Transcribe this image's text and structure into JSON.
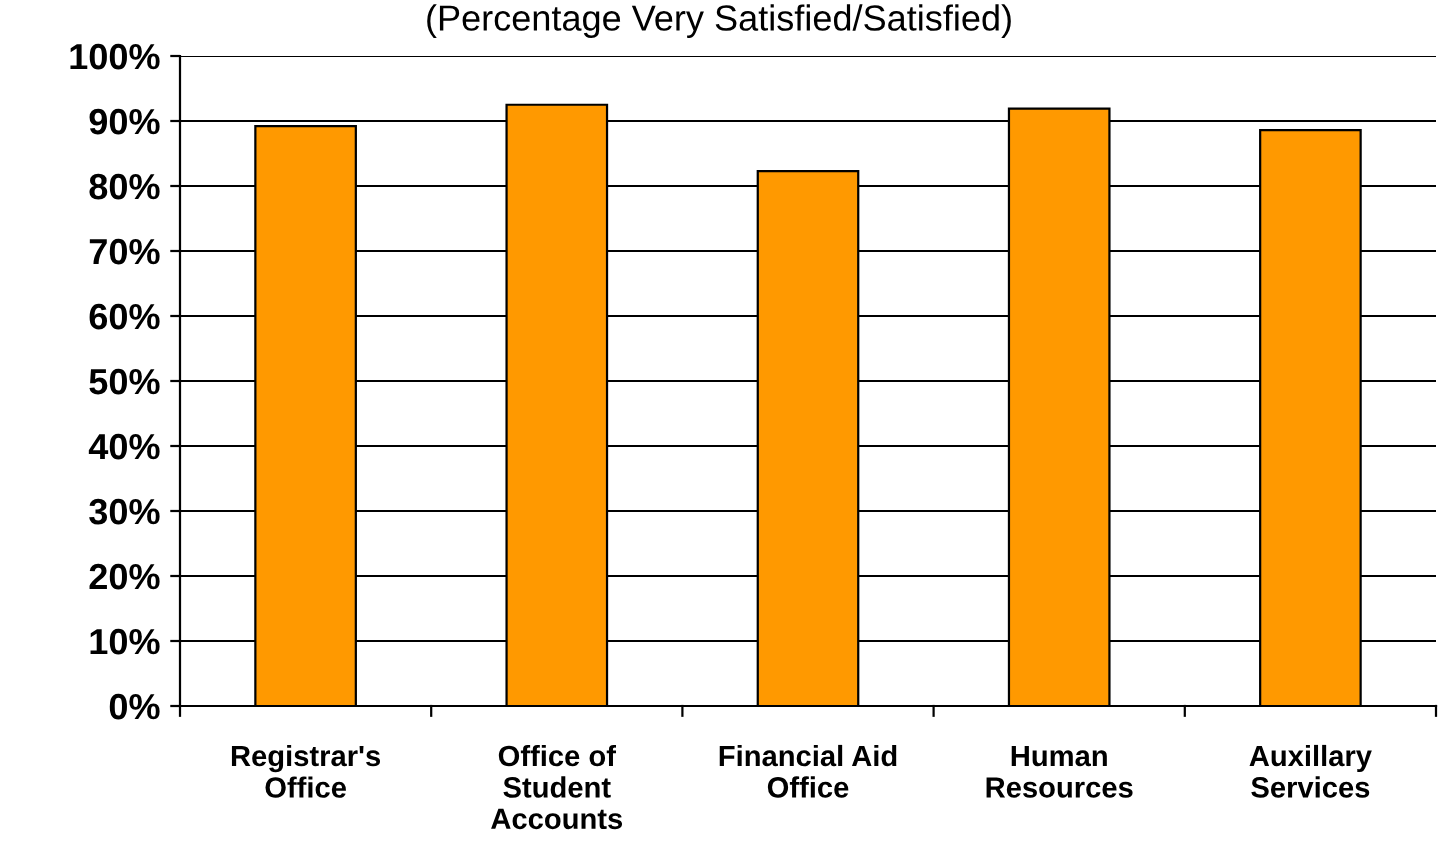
{
  "chart_data": {
    "type": "bar",
    "subtitle": "(Percentage Very Satisfied/Satisfied)",
    "categories": [
      "Registrar's\nOffice",
      "Office of\nStudent\nAccounts",
      "Financial Aid\nOffice",
      "Human\nResources",
      "Auxillary\nServices"
    ],
    "values": [
      89.2,
      92.5,
      82.3,
      91.9,
      88.6
    ],
    "color": "#ff9900",
    "ylim": [
      0,
      100
    ],
    "yticks": [
      {
        "value": 0,
        "label": "0%"
      },
      {
        "value": 10,
        "label": "10%"
      },
      {
        "value": 20,
        "label": "20%"
      },
      {
        "value": 30,
        "label": "30%"
      },
      {
        "value": 40,
        "label": "40%"
      },
      {
        "value": 50,
        "label": "50%"
      },
      {
        "value": 60,
        "label": "60%"
      },
      {
        "value": 70,
        "label": "70%"
      },
      {
        "value": 80,
        "label": "80%"
      },
      {
        "value": 90,
        "label": "90%"
      },
      {
        "value": 100,
        "label": "100%"
      }
    ],
    "grid": "y",
    "legend": false
  }
}
